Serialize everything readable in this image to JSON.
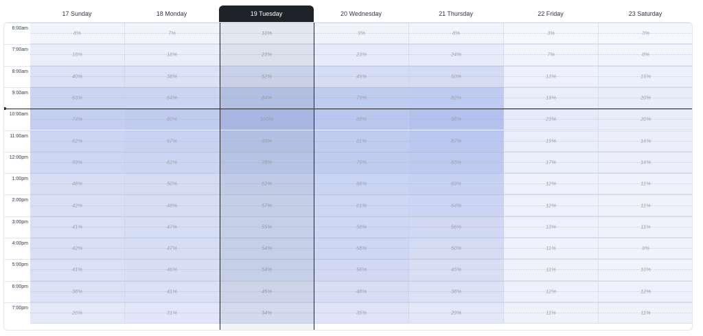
{
  "days": [
    {
      "label": "17 Sunday",
      "selected": false
    },
    {
      "label": "18 Monday",
      "selected": false
    },
    {
      "label": "19 Tuesday",
      "selected": true
    },
    {
      "label": "20 Wednesday",
      "selected": false
    },
    {
      "label": "21 Thursday",
      "selected": false
    },
    {
      "label": "22 Friday",
      "selected": false
    },
    {
      "label": "23 Saturday",
      "selected": false
    }
  ],
  "times": [
    "6:00am",
    "7:00am",
    "8:00am",
    "9:00am",
    "10:00am",
    "11:00am",
    "12:00pm",
    "1:00pm",
    "2:00pm",
    "3:00pm",
    "4:00pm",
    "5:00pm",
    "6:00pm",
    "7:00pm"
  ],
  "values": [
    [
      "8%",
      "7%",
      "10%",
      "9%",
      "8%",
      "3%",
      "3%"
    ],
    [
      "18%",
      "18%",
      "23%",
      "23%",
      "24%",
      "7%",
      "8%"
    ],
    [
      "40%",
      "38%",
      "52%",
      "49%",
      "50%",
      "13%",
      "15%"
    ],
    [
      "63%",
      "64%",
      "84%",
      "79%",
      "82%",
      "19%",
      "20%"
    ],
    [
      "74%",
      "80%",
      "100%",
      "88%",
      "98%",
      "23%",
      "20%"
    ],
    [
      "62%",
      "67%",
      "83%",
      "81%",
      "87%",
      "19%",
      "16%"
    ],
    [
      "59%",
      "62%",
      "78%",
      "79%",
      "83%",
      "17%",
      "16%"
    ],
    [
      "48%",
      "50%",
      "62%",
      "66%",
      "69%",
      "12%",
      "11%"
    ],
    [
      "42%",
      "48%",
      "57%",
      "61%",
      "64%",
      "12%",
      "11%"
    ],
    [
      "41%",
      "47%",
      "55%",
      "58%",
      "56%",
      "13%",
      "11%"
    ],
    [
      "42%",
      "47%",
      "54%",
      "58%",
      "50%",
      "11%",
      "9%"
    ],
    [
      "41%",
      "46%",
      "54%",
      "56%",
      "45%",
      "11%",
      "10%"
    ],
    [
      "38%",
      "41%",
      "45%",
      "48%",
      "38%",
      "12%",
      "12%"
    ],
    [
      "26%",
      "31%",
      "34%",
      "35%",
      "29%",
      "11%",
      "11%"
    ]
  ],
  "colors": {
    "accent_dark": "#1f2328",
    "heat_base": "#5a78d6"
  }
}
